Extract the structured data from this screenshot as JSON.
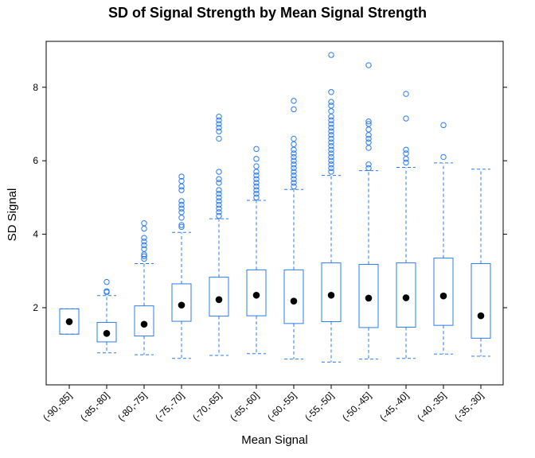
{
  "chart_data": {
    "type": "box",
    "title": "SD of Signal Strength by Mean Signal Strength",
    "xlabel": "Mean Signal",
    "ylabel": "SD Signal",
    "ylim": [
      -0.1,
      9.25
    ],
    "yticks": [
      2,
      4,
      6,
      8
    ],
    "grid": false,
    "color": "#2b7bef",
    "series": [
      {
        "category": "(-90,-85]",
        "q1": 1.28,
        "median": 1.62,
        "q3": 1.97,
        "whisker_low": 1.28,
        "whisker_high": 1.97,
        "outliers": []
      },
      {
        "category": "(-85,-80]",
        "q1": 1.07,
        "median": 1.3,
        "q3": 1.6,
        "whisker_low": 0.77,
        "whisker_high": 2.33,
        "outliers": [
          2.42,
          2.45,
          2.7
        ]
      },
      {
        "category": "(-80,-75]",
        "q1": 1.23,
        "median": 1.55,
        "q3": 2.05,
        "whisker_low": 0.72,
        "whisker_high": 3.2,
        "outliers": [
          3.33,
          3.4,
          3.45,
          3.6,
          3.7,
          3.8,
          3.9,
          4.15,
          4.3
        ]
      },
      {
        "category": "(-75,-70]",
        "q1": 1.63,
        "median": 2.07,
        "q3": 2.65,
        "whisker_low": 0.62,
        "whisker_high": 4.05,
        "outliers": [
          4.2,
          4.25,
          4.45,
          4.6,
          4.7,
          4.8,
          4.9,
          5.2,
          5.3,
          5.45,
          5.57
        ]
      },
      {
        "category": "(-70,-65]",
        "q1": 1.77,
        "median": 2.22,
        "q3": 2.83,
        "whisker_low": 0.7,
        "whisker_high": 4.42,
        "outliers": [
          4.5,
          4.6,
          4.7,
          4.8,
          4.9,
          5.0,
          5.1,
          5.2,
          5.4,
          5.5,
          5.7,
          6.6,
          6.8,
          6.9,
          7.0,
          7.1,
          7.2
        ]
      },
      {
        "category": "(-65,-60]",
        "q1": 1.78,
        "median": 2.34,
        "q3": 3.03,
        "whisker_low": 0.75,
        "whisker_high": 4.92,
        "outliers": [
          5.0,
          5.1,
          5.2,
          5.3,
          5.4,
          5.5,
          5.6,
          5.7,
          5.85,
          6.05,
          6.32
        ]
      },
      {
        "category": "(-60,-55]",
        "q1": 1.57,
        "median": 2.18,
        "q3": 3.03,
        "whisker_low": 0.6,
        "whisker_high": 5.22,
        "outliers": [
          5.3,
          5.4,
          5.5,
          5.6,
          5.7,
          5.8,
          5.9,
          6.0,
          6.1,
          6.2,
          6.3,
          6.45,
          6.6,
          7.4,
          7.63
        ]
      },
      {
        "category": "(-55,-50]",
        "q1": 1.62,
        "median": 2.34,
        "q3": 3.22,
        "whisker_low": 0.52,
        "whisker_high": 5.6,
        "outliers": [
          5.7,
          5.8,
          5.9,
          6.0,
          6.1,
          6.2,
          6.3,
          6.4,
          6.5,
          6.6,
          6.7,
          6.8,
          6.9,
          7.0,
          7.1,
          7.2,
          7.35,
          7.5,
          7.6,
          7.87,
          8.88
        ]
      },
      {
        "category": "(-50,-45]",
        "q1": 1.46,
        "median": 2.26,
        "q3": 3.18,
        "whisker_low": 0.6,
        "whisker_high": 5.73,
        "outliers": [
          5.8,
          5.9,
          6.35,
          6.5,
          6.6,
          6.7,
          6.85,
          7.0,
          7.07,
          8.6
        ]
      },
      {
        "category": "(-45,-40]",
        "q1": 1.47,
        "median": 2.27,
        "q3": 3.22,
        "whisker_low": 0.62,
        "whisker_high": 5.82,
        "outliers": [
          5.95,
          6.05,
          6.2,
          6.3,
          7.15,
          7.82
        ]
      },
      {
        "category": "(-40,-35]",
        "q1": 1.52,
        "median": 2.32,
        "q3": 3.35,
        "whisker_low": 0.74,
        "whisker_high": 5.94,
        "outliers": [
          6.1,
          6.97
        ]
      },
      {
        "category": "(-35,-30]",
        "q1": 1.17,
        "median": 1.78,
        "q3": 3.2,
        "whisker_low": 0.68,
        "whisker_high": 5.77,
        "outliers": []
      }
    ]
  }
}
